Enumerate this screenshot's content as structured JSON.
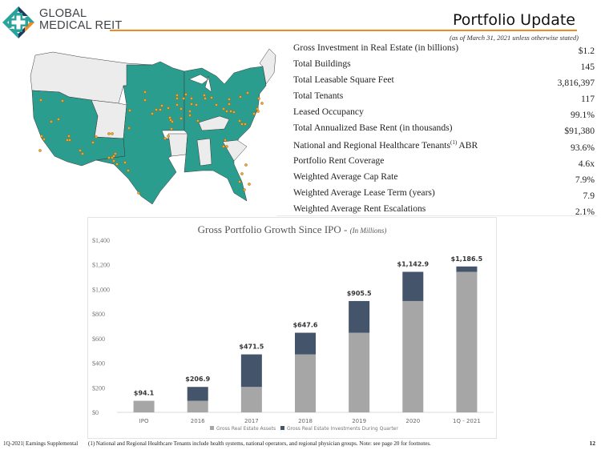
{
  "header": {
    "brand_line1": "GLOBAL",
    "brand_line2": "MEDICAL REIT",
    "title": "Portfolio Update",
    "subtitle": "(as of March 31, 2021 unless otherwise stated)"
  },
  "colors": {
    "accent_orange": "#f08a24",
    "map_teal": "#2a9d8f",
    "map_grey": "#ececec",
    "marker_orange": "#f4a52a",
    "bar_assets": "#a6a6a6",
    "bar_investments": "#44546a"
  },
  "stats": [
    {
      "label": "Gross Investment  in Real Estate (in billions)",
      "value": "$1.2"
    },
    {
      "label": "Total Buildings",
      "value": "145"
    },
    {
      "label": "Total Leasable  Square Feet",
      "value": "3,816,397"
    },
    {
      "label": "Total Tenants",
      "value": "117"
    },
    {
      "label": "Leased  Occupancy",
      "value": "99.1%"
    },
    {
      "label": "Total Annualized  Base Rent (in thousands)",
      "value": "$91,380"
    },
    {
      "label": "National and Regional Healthcare Tenants",
      "sup": "(1)",
      "label_suffix": " ABR",
      "value": "93.6%"
    },
    {
      "label": "Portfolio Rent Coverage",
      "value": "4.6x"
    },
    {
      "label": "Weighted  Average  Cap Rate",
      "value": "7.9%"
    },
    {
      "label": "Weighted  Average  Lease Term (years)",
      "value": "7.9"
    },
    {
      "label": "Weighted  Average  Rent Escalations",
      "value": "2.1%"
    }
  ],
  "chart_data": {
    "type": "bar",
    "stacked": true,
    "title": "Gross Portfolio Growth Since IPO - ",
    "title_suffix": "(In Millions)",
    "categories": [
      "IPO",
      "2016",
      "2017",
      "2018",
      "2019",
      "2020",
      "1Q - 2021"
    ],
    "series": [
      {
        "name": "Gross Real Estate Assets",
        "values": [
          94.1,
          94.1,
          206.9,
          471.5,
          647.6,
          905.5,
          1142.9
        ]
      },
      {
        "name": "Gross Real Estate Investments During Quarter",
        "values": [
          0,
          112.8,
          264.6,
          176.1,
          257.9,
          237.4,
          43.6
        ]
      }
    ],
    "totals": [
      94.1,
      206.9,
      471.5,
      647.6,
      905.5,
      1142.9,
      1186.5
    ],
    "data_labels": [
      "$94.1",
      "$206.9",
      "$471.5",
      "$647.6",
      "$905.5",
      "$1,142.9",
      "$1,186.5"
    ],
    "ylim": [
      0,
      1400
    ],
    "yticks": [
      0,
      200,
      400,
      600,
      800,
      1000,
      1200,
      1400
    ],
    "ytick_labels": [
      "$0",
      "$200",
      "$400",
      "$600",
      "$800",
      "$1,000",
      "$1,200",
      "$1,400"
    ],
    "xlabel": "",
    "ylabel": "",
    "grid": false,
    "legend_position": "bottom"
  },
  "footer": {
    "left": "1Q-2021| Earnings Supplemental",
    "note": "(1)  National and Regional Healthcare  Tenants include health systems, national operators, and regional physician groups.  Note: see page 20 for footnotes.",
    "page": "12"
  }
}
